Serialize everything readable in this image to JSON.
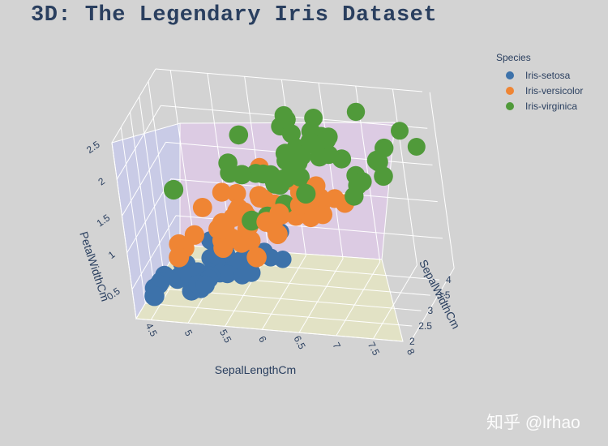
{
  "title": "3D: The Legendary Iris Dataset",
  "watermark": "知乎 @lrhao",
  "legend": {
    "title": "Species",
    "entries": [
      {
        "name": "Iris-setosa",
        "color": "#3d72aa"
      },
      {
        "name": "Iris-versicolor",
        "color": "#ef8534"
      },
      {
        "name": "Iris-virginica",
        "color": "#509a3a"
      }
    ]
  },
  "chart_data": {
    "type": "scatter3d",
    "xlabel": "SepalLengthCm",
    "ylabel": "SepalWidthCm",
    "zlabel": "PetalWidthCm",
    "xlim": [
      4.3,
      7.9
    ],
    "ylim": [
      2.0,
      4.4
    ],
    "zlim": [
      0.1,
      2.5
    ],
    "x_ticks": [
      "4.5",
      "5",
      "5.5",
      "6",
      "6.5",
      "7",
      "7.5",
      "8"
    ],
    "y_ticks": [
      "2",
      "2.5",
      "3",
      "3.5",
      "4"
    ],
    "z_ticks": [
      "0.5",
      "1",
      "1.5",
      "2",
      "2.5"
    ],
    "series": [
      {
        "name": "Iris-setosa",
        "color": "#3d72aa",
        "points": [
          [
            5.1,
            3.5,
            0.2
          ],
          [
            4.9,
            3.0,
            0.2
          ],
          [
            4.7,
            3.2,
            0.2
          ],
          [
            4.6,
            3.1,
            0.2
          ],
          [
            5.0,
            3.6,
            0.2
          ],
          [
            5.4,
            3.9,
            0.4
          ],
          [
            4.6,
            3.4,
            0.3
          ],
          [
            5.0,
            3.4,
            0.2
          ],
          [
            4.4,
            2.9,
            0.2
          ],
          [
            4.9,
            3.1,
            0.1
          ],
          [
            5.4,
            3.7,
            0.2
          ],
          [
            4.8,
            3.4,
            0.2
          ],
          [
            4.8,
            3.0,
            0.1
          ],
          [
            4.3,
            3.0,
            0.1
          ],
          [
            5.8,
            4.0,
            0.2
          ],
          [
            5.7,
            4.4,
            0.4
          ],
          [
            5.4,
            3.9,
            0.4
          ],
          [
            5.1,
            3.5,
            0.3
          ],
          [
            5.7,
            3.8,
            0.3
          ],
          [
            5.1,
            3.8,
            0.3
          ],
          [
            5.4,
            3.4,
            0.2
          ],
          [
            5.1,
            3.7,
            0.4
          ],
          [
            4.6,
            3.6,
            0.2
          ],
          [
            5.1,
            3.3,
            0.5
          ],
          [
            4.8,
            3.4,
            0.2
          ],
          [
            5.0,
            3.0,
            0.2
          ],
          [
            5.0,
            3.4,
            0.4
          ],
          [
            5.2,
            3.5,
            0.2
          ],
          [
            5.2,
            3.4,
            0.2
          ],
          [
            4.7,
            3.2,
            0.2
          ],
          [
            4.8,
            3.1,
            0.2
          ],
          [
            5.4,
            3.4,
            0.4
          ],
          [
            5.2,
            4.1,
            0.1
          ],
          [
            5.5,
            4.2,
            0.2
          ],
          [
            4.9,
            3.1,
            0.1
          ],
          [
            5.0,
            3.2,
            0.2
          ],
          [
            5.5,
            3.5,
            0.2
          ],
          [
            4.9,
            3.1,
            0.1
          ],
          [
            4.4,
            3.0,
            0.2
          ],
          [
            5.1,
            3.4,
            0.2
          ],
          [
            5.0,
            3.5,
            0.3
          ],
          [
            4.5,
            2.3,
            0.3
          ],
          [
            4.4,
            3.2,
            0.2
          ],
          [
            5.0,
            3.5,
            0.6
          ],
          [
            5.1,
            3.8,
            0.4
          ],
          [
            4.8,
            3.0,
            0.3
          ],
          [
            5.1,
            3.8,
            0.2
          ],
          [
            4.6,
            3.2,
            0.2
          ],
          [
            5.3,
            3.7,
            0.2
          ],
          [
            5.0,
            3.3,
            0.2
          ]
        ]
      },
      {
        "name": "Iris-versicolor",
        "color": "#ef8534",
        "points": [
          [
            7.0,
            3.2,
            1.4
          ],
          [
            6.4,
            3.2,
            1.5
          ],
          [
            6.9,
            3.1,
            1.5
          ],
          [
            5.5,
            2.3,
            1.3
          ],
          [
            6.5,
            2.8,
            1.5
          ],
          [
            5.7,
            2.8,
            1.3
          ],
          [
            6.3,
            3.3,
            1.6
          ],
          [
            4.9,
            2.4,
            1.0
          ],
          [
            6.6,
            2.9,
            1.3
          ],
          [
            5.2,
            2.7,
            1.4
          ],
          [
            5.0,
            2.0,
            1.0
          ],
          [
            5.9,
            3.0,
            1.5
          ],
          [
            6.0,
            2.2,
            1.0
          ],
          [
            6.1,
            2.9,
            1.4
          ],
          [
            5.6,
            2.9,
            1.3
          ],
          [
            6.7,
            3.1,
            1.4
          ],
          [
            5.6,
            3.0,
            1.5
          ],
          [
            5.8,
            2.7,
            1.0
          ],
          [
            6.2,
            2.2,
            1.5
          ],
          [
            5.6,
            2.5,
            1.1
          ],
          [
            5.9,
            3.2,
            1.8
          ],
          [
            6.1,
            2.8,
            1.3
          ],
          [
            6.3,
            2.5,
            1.5
          ],
          [
            6.1,
            2.8,
            1.2
          ],
          [
            6.4,
            2.9,
            1.3
          ],
          [
            6.6,
            3.0,
            1.4
          ],
          [
            6.8,
            2.8,
            1.4
          ],
          [
            6.7,
            3.0,
            1.7
          ],
          [
            6.0,
            2.9,
            1.5
          ],
          [
            5.7,
            2.6,
            1.0
          ],
          [
            5.5,
            2.4,
            1.1
          ],
          [
            5.5,
            2.4,
            1.0
          ],
          [
            5.8,
            2.7,
            1.2
          ],
          [
            6.0,
            2.7,
            1.6
          ],
          [
            5.4,
            3.0,
            1.5
          ],
          [
            6.0,
            3.4,
            1.6
          ],
          [
            6.7,
            3.1,
            1.5
          ],
          [
            6.3,
            2.3,
            1.3
          ],
          [
            5.6,
            3.0,
            1.3
          ],
          [
            5.5,
            2.5,
            1.3
          ],
          [
            5.5,
            2.6,
            1.2
          ],
          [
            6.1,
            3.0,
            1.4
          ],
          [
            5.8,
            2.6,
            1.2
          ],
          [
            5.0,
            2.3,
            1.0
          ],
          [
            5.6,
            2.7,
            1.3
          ],
          [
            5.7,
            3.0,
            1.2
          ],
          [
            5.7,
            2.9,
            1.3
          ],
          [
            6.2,
            2.9,
            1.3
          ],
          [
            5.1,
            2.5,
            1.1
          ],
          [
            5.7,
            2.8,
            1.3
          ]
        ]
      },
      {
        "name": "Iris-virginica",
        "color": "#509a3a",
        "points": [
          [
            6.3,
            3.3,
            2.5
          ],
          [
            5.8,
            2.7,
            1.9
          ],
          [
            7.1,
            3.0,
            2.1
          ],
          [
            6.3,
            2.9,
            1.8
          ],
          [
            6.5,
            3.0,
            2.2
          ],
          [
            7.6,
            3.0,
            2.1
          ],
          [
            4.9,
            2.5,
            1.7
          ],
          [
            7.3,
            2.9,
            1.8
          ],
          [
            6.7,
            2.5,
            1.8
          ],
          [
            7.2,
            3.6,
            2.5
          ],
          [
            6.5,
            3.2,
            2.0
          ],
          [
            6.4,
            2.7,
            1.9
          ],
          [
            6.8,
            3.0,
            2.1
          ],
          [
            5.7,
            2.5,
            2.0
          ],
          [
            5.8,
            2.8,
            2.4
          ],
          [
            6.4,
            3.2,
            2.3
          ],
          [
            6.5,
            3.0,
            1.8
          ],
          [
            7.7,
            3.8,
            2.2
          ],
          [
            7.7,
            2.6,
            2.3
          ],
          [
            6.0,
            2.2,
            1.5
          ],
          [
            6.9,
            3.2,
            2.3
          ],
          [
            5.6,
            2.8,
            2.0
          ],
          [
            7.7,
            2.8,
            2.0
          ],
          [
            6.3,
            2.7,
            1.8
          ],
          [
            6.7,
            3.3,
            2.1
          ],
          [
            7.2,
            3.2,
            1.8
          ],
          [
            6.2,
            2.8,
            1.8
          ],
          [
            6.1,
            3.0,
            1.8
          ],
          [
            6.4,
            2.8,
            2.1
          ],
          [
            7.2,
            3.0,
            1.6
          ],
          [
            7.4,
            2.8,
            1.9
          ],
          [
            7.9,
            3.8,
            2.0
          ],
          [
            6.4,
            2.8,
            2.2
          ],
          [
            6.3,
            2.8,
            1.5
          ],
          [
            6.1,
            2.6,
            1.4
          ],
          [
            7.7,
            3.0,
            2.3
          ],
          [
            6.3,
            3.4,
            2.4
          ],
          [
            6.4,
            3.1,
            1.8
          ],
          [
            6.0,
            3.0,
            1.8
          ],
          [
            6.9,
            3.1,
            2.1
          ],
          [
            6.7,
            3.1,
            2.4
          ],
          [
            6.9,
            3.1,
            2.3
          ],
          [
            5.8,
            2.7,
            1.9
          ],
          [
            6.8,
            3.2,
            2.3
          ],
          [
            6.7,
            3.3,
            2.5
          ],
          [
            6.7,
            3.0,
            2.3
          ],
          [
            6.3,
            2.5,
            1.9
          ],
          [
            6.5,
            3.0,
            2.0
          ],
          [
            6.2,
            3.4,
            2.3
          ],
          [
            5.9,
            3.0,
            1.8
          ]
        ]
      }
    ]
  }
}
